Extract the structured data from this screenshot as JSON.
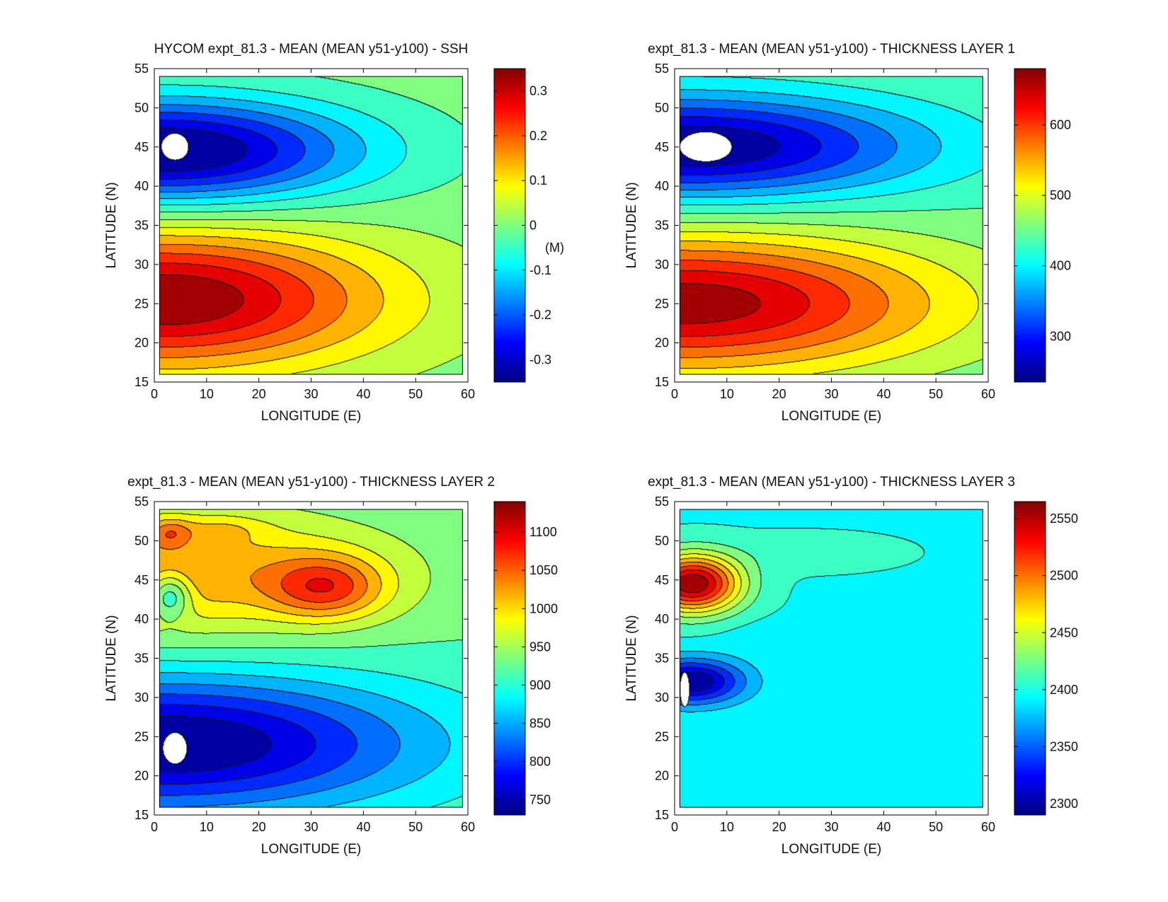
{
  "figure": {
    "name": "HYCOM expt_81.3 mean fields, 4-panel contour figure"
  },
  "chart_data": [
    {
      "type": "heatmap",
      "variant": "filled-contour",
      "title": "HYCOM expt_81.3 - MEAN (MEAN y51-y100) - SSH",
      "xlabel": "LONGITUDE (E)",
      "ylabel": "LATITUDE (N)",
      "xlim": [
        0,
        60
      ],
      "ylim": [
        15,
        55
      ],
      "data_extent": {
        "x": [
          1,
          59
        ],
        "y": [
          16,
          54
        ]
      },
      "xticks": [
        0,
        10,
        20,
        30,
        40,
        50,
        60
      ],
      "yticks": [
        15,
        20,
        25,
        30,
        35,
        40,
        45,
        50,
        55
      ],
      "colorbar": {
        "min": -0.35,
        "max": 0.35,
        "ticks": [
          0.3,
          0.2,
          0.1,
          0,
          -0.1,
          -0.2,
          -0.3
        ],
        "tick_labels": [
          "0.3",
          "0.2",
          "0.1",
          "0",
          "-0.1",
          "-0.2",
          "-0.3"
        ],
        "unit_label": "(M)",
        "unit_value": -0.05
      },
      "background_value": 0.0,
      "features": [
        {
          "kind": "gyre",
          "cx": 2,
          "cy": 44.5,
          "ex": 36,
          "ey": 6.5,
          "amp": -0.37
        },
        {
          "kind": "gyre",
          "cx": 2,
          "cy": 25.5,
          "ex": 40,
          "ey": 8.5,
          "amp": 0.35
        }
      ],
      "blank_regions": [
        {
          "cx": 4,
          "cy": 45,
          "rx": 2.6,
          "ry": 1.7
        }
      ]
    },
    {
      "type": "heatmap",
      "variant": "filled-contour",
      "title": "expt_81.3 - MEAN (MEAN y51-y100) - THICKNESS LAYER 1",
      "xlabel": "LONGITUDE (E)",
      "ylabel": "LATITUDE (N)",
      "xlim": [
        0,
        60
      ],
      "ylim": [
        15,
        55
      ],
      "data_extent": {
        "x": [
          1,
          59
        ],
        "y": [
          16,
          54
        ]
      },
      "xticks": [
        0,
        10,
        20,
        30,
        40,
        50,
        60
      ],
      "yticks": [
        15,
        20,
        25,
        30,
        35,
        40,
        45,
        50,
        55
      ],
      "colorbar": {
        "min": 235,
        "max": 680,
        "ticks": [
          600,
          500,
          400,
          300
        ],
        "tick_labels": [
          "600",
          "500",
          "400",
          "300"
        ]
      },
      "background_value": 445,
      "features": [
        {
          "kind": "gyre",
          "cx": 2,
          "cy": 45,
          "ex": 44,
          "ey": 6.5,
          "amp": -215
        },
        {
          "kind": "gyre",
          "cx": 2,
          "cy": 25,
          "ex": 48,
          "ey": 8.5,
          "amp": 225
        }
      ],
      "blank_regions": [
        {
          "cx": 6,
          "cy": 45,
          "rx": 5,
          "ry": 1.9
        }
      ]
    },
    {
      "type": "heatmap",
      "variant": "filled-contour",
      "title": "expt_81.3 - MEAN (MEAN y51-y100) - THICKNESS LAYER 2",
      "xlabel": "LONGITUDE (E)",
      "ylabel": "LATITUDE (N)",
      "xlim": [
        0,
        60
      ],
      "ylim": [
        15,
        55
      ],
      "data_extent": {
        "x": [
          1,
          59
        ],
        "y": [
          16,
          54
        ]
      },
      "xticks": [
        0,
        10,
        20,
        30,
        40,
        50,
        60
      ],
      "yticks": [
        15,
        20,
        25,
        30,
        35,
        40,
        45,
        50,
        55
      ],
      "colorbar": {
        "min": 730,
        "max": 1140,
        "ticks": [
          1100,
          1050,
          1000,
          950,
          900,
          850,
          800,
          750
        ],
        "tick_labels": [
          "1100",
          "1050",
          "1000",
          "950",
          "900",
          "850",
          "800",
          "750"
        ]
      },
      "background_value": 920,
      "features": [
        {
          "kind": "gyre",
          "cx": 2,
          "cy": 46,
          "ex": 42,
          "ey": 8,
          "amp": 110
        },
        {
          "kind": "blob",
          "cx": 33,
          "cy": 44,
          "sx": 11,
          "sy": 4,
          "amp": 110
        },
        {
          "kind": "blob",
          "cx": 3,
          "cy": 51,
          "sx": 4,
          "sy": 1.8,
          "amp": 60
        },
        {
          "kind": "blob",
          "cx": 13,
          "cy": 51.5,
          "sx": 8,
          "sy": 1.6,
          "amp": 30
        },
        {
          "kind": "blob",
          "cx": 3,
          "cy": 43,
          "sx": 4,
          "sy": 2.8,
          "amp": -100
        },
        {
          "kind": "gyre",
          "cx": 2,
          "cy": 24,
          "ex": 48,
          "ey": 8.5,
          "amp": -195
        }
      ],
      "blank_regions": [
        {
          "cx": 4,
          "cy": 23.5,
          "rx": 2.3,
          "ry": 2
        }
      ]
    },
    {
      "type": "heatmap",
      "variant": "filled-contour",
      "title": "expt_81.3 - MEAN (MEAN y51-y100) - THICKNESS LAYER 3",
      "xlabel": "LONGITUDE (E)",
      "ylabel": "LATITUDE (N)",
      "xlim": [
        0,
        60
      ],
      "ylim": [
        15,
        55
      ],
      "data_extent": {
        "x": [
          1,
          59
        ],
        "y": [
          16,
          54
        ]
      },
      "xticks": [
        0,
        10,
        20,
        30,
        40,
        50,
        60
      ],
      "yticks": [
        15,
        20,
        25,
        30,
        35,
        40,
        45,
        50,
        55
      ],
      "colorbar": {
        "min": 2290,
        "max": 2565,
        "ticks": [
          2550,
          2500,
          2450,
          2400,
          2350,
          2300
        ],
        "tick_labels": [
          "2550",
          "2500",
          "2450",
          "2400",
          "2350",
          "2300"
        ]
      },
      "background_value": 2398,
      "features": [
        {
          "kind": "blob",
          "cx": 3.5,
          "cy": 44.5,
          "sx": 9,
          "sy": 3.6,
          "amp": 165
        },
        {
          "kind": "blob",
          "cx": 25,
          "cy": 48.5,
          "sx": 18,
          "sy": 2.4,
          "amp": 10
        },
        {
          "kind": "blob",
          "cx": 3,
          "cy": 32,
          "sx": 10,
          "sy": 2.8,
          "amp": -110
        },
        {
          "kind": "blob",
          "cx": 20,
          "cy": 37.5,
          "sx": 11,
          "sy": 2.2,
          "amp": -9
        }
      ],
      "blank_regions": [
        {
          "cx": 2,
          "cy": 31,
          "rx": 0.9,
          "ry": 2.2
        }
      ]
    }
  ]
}
